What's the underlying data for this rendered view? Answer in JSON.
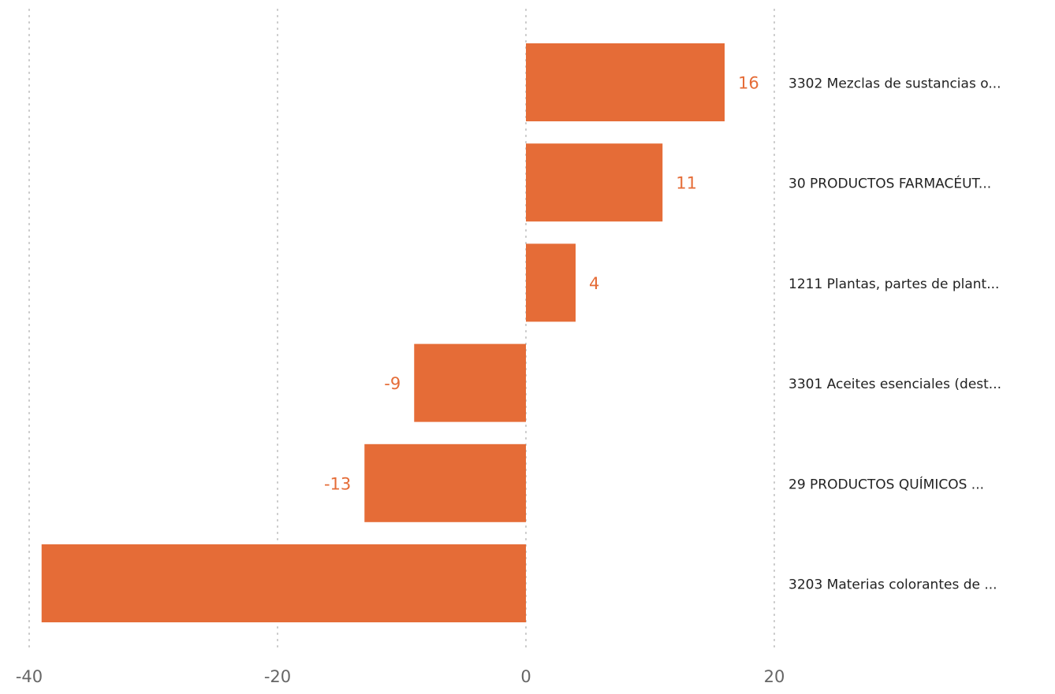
{
  "chart_data": {
    "type": "bar",
    "orientation": "horizontal",
    "categories": [
      "3302 Mezclas de sustancias o...",
      "30 PRODUCTOS FARMACÉUT...",
      "1211 Plantas, partes de plant...",
      "3301 Aceites esenciales (dest...",
      "29 PRODUCTOS QUÍMICOS ...",
      "3203 Materias colorantes de ..."
    ],
    "values": [
      16,
      11,
      4,
      -9,
      -13,
      -39
    ],
    "data_labels": [
      "16",
      "11",
      "4",
      "-9",
      "-13",
      ""
    ],
    "xlim": [
      -40,
      20
    ],
    "xticks": [
      "-40",
      "-20",
      "0",
      "20"
    ],
    "xtick_values": [
      -40,
      -20,
      0,
      20
    ],
    "grid": true,
    "bar_color": "#E56C37",
    "label_color": "#E56C37",
    "title": "",
    "xlabel": "",
    "ylabel": ""
  }
}
